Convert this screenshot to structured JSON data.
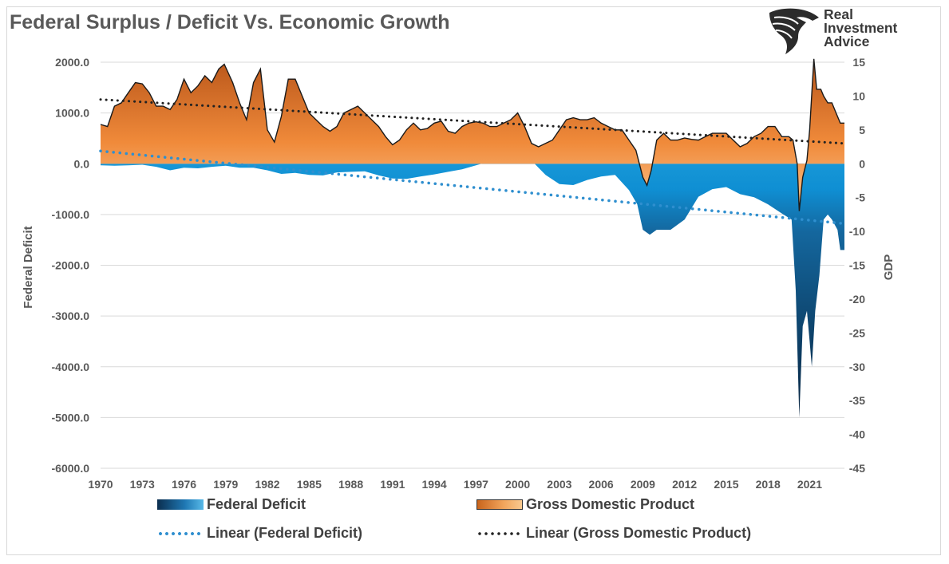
{
  "title": "Federal Surplus / Deficit Vs. Economic Growth",
  "brand": {
    "line1": "Real",
    "line2": "Investment",
    "line3": "Advice",
    "icon": "eagle-head-logo"
  },
  "colors": {
    "deficit": "#1f8fd1",
    "deficit_dark": "#0b2e4f",
    "gdp": "#f08a3a",
    "gdp_dark": "#c6611a",
    "trend_deficit": "#2f8fcf",
    "trend_gdp": "#222222"
  },
  "chart_data": {
    "type": "area",
    "title": "Federal Surplus / Deficit Vs. Economic Growth",
    "ylabel": "Federal Deficit",
    "y2label": "GDP",
    "ylim": [
      -6000,
      2000
    ],
    "y2lim": [
      -45,
      15
    ],
    "yticks": [
      "2000.0",
      "1000.0",
      "0.0",
      "-1000.0",
      "-2000.0",
      "-3000.0",
      "-4000.0",
      "-5000.0",
      "-6000.0"
    ],
    "y2ticks": [
      "15",
      "10",
      "5",
      "0",
      "-5",
      "-10",
      "-15",
      "-20",
      "-25",
      "-30",
      "-35",
      "-40",
      "-45"
    ],
    "xlim": [
      1970,
      2023.5
    ],
    "xticks": [
      "1970",
      "1973",
      "1976",
      "1979",
      "1982",
      "1985",
      "1988",
      "1991",
      "1994",
      "1997",
      "2000",
      "2003",
      "2006",
      "2009",
      "2012",
      "2015",
      "2018",
      "2021"
    ],
    "grid": true,
    "legend_position": "bottom",
    "series": [
      {
        "name": "Federal Deficit",
        "axis": "left",
        "points": [
          [
            1970,
            -30
          ],
          [
            1971,
            -40
          ],
          [
            1972,
            -30
          ],
          [
            1973,
            -20
          ],
          [
            1974,
            -60
          ],
          [
            1975,
            -130
          ],
          [
            1976,
            -80
          ],
          [
            1977,
            -90
          ],
          [
            1978,
            -60
          ],
          [
            1979,
            -40
          ],
          [
            1980,
            -80
          ],
          [
            1981,
            -80
          ],
          [
            1982,
            -130
          ],
          [
            1983,
            -200
          ],
          [
            1984,
            -180
          ],
          [
            1985,
            -220
          ],
          [
            1986,
            -230
          ],
          [
            1987,
            -170
          ],
          [
            1988,
            -160
          ],
          [
            1989,
            -150
          ],
          [
            1990,
            -230
          ],
          [
            1991,
            -290
          ],
          [
            1992,
            -300
          ],
          [
            1993,
            -250
          ],
          [
            1994,
            -210
          ],
          [
            1995,
            -160
          ],
          [
            1996,
            -110
          ],
          [
            1997,
            -30
          ],
          [
            1998,
            50
          ],
          [
            1999,
            120
          ],
          [
            2000,
            230
          ],
          [
            2001,
            60
          ],
          [
            2002,
            -220
          ],
          [
            2003,
            -400
          ],
          [
            2004,
            -420
          ],
          [
            2005,
            -320
          ],
          [
            2006,
            -250
          ],
          [
            2007,
            -220
          ],
          [
            2008,
            -520
          ],
          [
            2008.6,
            -800
          ],
          [
            2009.0,
            -1300
          ],
          [
            2009.5,
            -1400
          ],
          [
            2010,
            -1300
          ],
          [
            2011,
            -1300
          ],
          [
            2012,
            -1100
          ],
          [
            2013,
            -650
          ],
          [
            2014,
            -500
          ],
          [
            2015,
            -460
          ],
          [
            2016,
            -600
          ],
          [
            2017,
            -660
          ],
          [
            2018,
            -800
          ],
          [
            2019,
            -980
          ],
          [
            2019.7,
            -1100
          ],
          [
            2020.0,
            -2500
          ],
          [
            2020.25,
            -5000
          ],
          [
            2020.5,
            -3200
          ],
          [
            2020.8,
            -2900
          ],
          [
            2021.0,
            -3500
          ],
          [
            2021.15,
            -4000
          ],
          [
            2021.4,
            -2900
          ],
          [
            2021.7,
            -2200
          ],
          [
            2022.0,
            -1100
          ],
          [
            2022.3,
            -1000
          ],
          [
            2022.6,
            -1100
          ],
          [
            2023.0,
            -1300
          ],
          [
            2023.2,
            -1700
          ],
          [
            2023.5,
            -1700
          ]
        ]
      },
      {
        "name": "Gross Domestic Product",
        "axis": "right",
        "points": [
          [
            1970,
            5.8
          ],
          [
            1970.5,
            5.5
          ],
          [
            1971,
            8.5
          ],
          [
            1971.5,
            9
          ],
          [
            1972,
            10.5
          ],
          [
            1972.5,
            12
          ],
          [
            1973,
            11.8
          ],
          [
            1973.5,
            10.5
          ],
          [
            1974,
            8.5
          ],
          [
            1974.5,
            8.5
          ],
          [
            1975,
            8
          ],
          [
            1975.5,
            9.5
          ],
          [
            1976,
            12.5
          ],
          [
            1976.5,
            10.5
          ],
          [
            1977,
            11.5
          ],
          [
            1977.5,
            13
          ],
          [
            1978,
            12
          ],
          [
            1978.5,
            14
          ],
          [
            1978.9,
            14.7
          ],
          [
            1979.5,
            12
          ],
          [
            1980,
            9
          ],
          [
            1980.5,
            6.5
          ],
          [
            1981,
            12
          ],
          [
            1981.5,
            14
          ],
          [
            1982,
            5
          ],
          [
            1982.5,
            3.2
          ],
          [
            1983,
            7
          ],
          [
            1983.5,
            12.5
          ],
          [
            1984,
            12.5
          ],
          [
            1984.5,
            10
          ],
          [
            1985,
            7.5
          ],
          [
            1985.5,
            6.5
          ],
          [
            1986,
            5.5
          ],
          [
            1986.5,
            4.8
          ],
          [
            1987,
            5.5
          ],
          [
            1987.5,
            7.5
          ],
          [
            1988,
            8
          ],
          [
            1988.5,
            8.5
          ],
          [
            1989,
            7.5
          ],
          [
            1989.5,
            6.5
          ],
          [
            1990,
            5.5
          ],
          [
            1990.5,
            4
          ],
          [
            1991,
            2.8
          ],
          [
            1991.5,
            3.5
          ],
          [
            1992,
            5
          ],
          [
            1992.5,
            6
          ],
          [
            1993,
            5
          ],
          [
            1993.5,
            5.2
          ],
          [
            1994,
            6
          ],
          [
            1994.5,
            6.3
          ],
          [
            1995,
            4.8
          ],
          [
            1995.5,
            4.5
          ],
          [
            1996,
            5.5
          ],
          [
            1996.5,
            6
          ],
          [
            1997,
            6.2
          ],
          [
            1997.5,
            6
          ],
          [
            1998,
            5.5
          ],
          [
            1998.5,
            5.5
          ],
          [
            1999,
            6
          ],
          [
            1999.5,
            6.5
          ],
          [
            2000,
            7.5
          ],
          [
            2000.5,
            5.5
          ],
          [
            2001,
            3
          ],
          [
            2001.5,
            2.5
          ],
          [
            2002,
            3
          ],
          [
            2002.5,
            3.5
          ],
          [
            2003,
            5
          ],
          [
            2003.5,
            6.5
          ],
          [
            2004,
            6.8
          ],
          [
            2004.5,
            6.5
          ],
          [
            2005,
            6.5
          ],
          [
            2005.5,
            6.8
          ],
          [
            2006,
            6
          ],
          [
            2006.5,
            5.5
          ],
          [
            2007,
            5
          ],
          [
            2007.5,
            5
          ],
          [
            2008,
            3.5
          ],
          [
            2008.5,
            2
          ],
          [
            2009,
            -2
          ],
          [
            2009.3,
            -3.2
          ],
          [
            2009.6,
            -1
          ],
          [
            2010,
            3.5
          ],
          [
            2010.5,
            4.5
          ],
          [
            2011,
            3.5
          ],
          [
            2011.5,
            3.5
          ],
          [
            2012,
            3.8
          ],
          [
            2012.5,
            3.6
          ],
          [
            2013,
            3.5
          ],
          [
            2013.5,
            4
          ],
          [
            2014,
            4.5
          ],
          [
            2014.5,
            4.5
          ],
          [
            2015,
            4.5
          ],
          [
            2015.5,
            3.5
          ],
          [
            2016,
            2.5
          ],
          [
            2016.5,
            3
          ],
          [
            2017,
            4
          ],
          [
            2017.5,
            4.5
          ],
          [
            2018,
            5.5
          ],
          [
            2018.5,
            5.5
          ],
          [
            2019,
            4
          ],
          [
            2019.5,
            4
          ],
          [
            2019.8,
            3.5
          ],
          [
            2020.1,
            0
          ],
          [
            2020.25,
            -7
          ],
          [
            2020.5,
            -2
          ],
          [
            2020.8,
            0.5
          ],
          [
            2021.0,
            5
          ],
          [
            2021.2,
            12
          ],
          [
            2021.3,
            15.5
          ],
          [
            2021.5,
            11
          ],
          [
            2021.8,
            11
          ],
          [
            2022.0,
            10
          ],
          [
            2022.3,
            9
          ],
          [
            2022.6,
            9
          ],
          [
            2022.9,
            7.5
          ],
          [
            2023.2,
            6
          ],
          [
            2023.5,
            6
          ]
        ]
      },
      {
        "name": "Linear (Federal Deficit)",
        "axis": "left",
        "type": "trend",
        "points": [
          [
            1970,
            250
          ],
          [
            2023.5,
            -1180
          ]
        ]
      },
      {
        "name": "Linear (Gross Domestic Product)",
        "axis": "right",
        "type": "trend",
        "points": [
          [
            1970,
            9.5
          ],
          [
            2023.5,
            3
          ]
        ]
      }
    ]
  },
  "legend": {
    "deficit": "Federal Deficit",
    "gdp": "Gross Domestic Product",
    "deficit_trend": "Linear (Federal Deficit)",
    "gdp_trend": "Linear (Gross Domestic Product)"
  }
}
